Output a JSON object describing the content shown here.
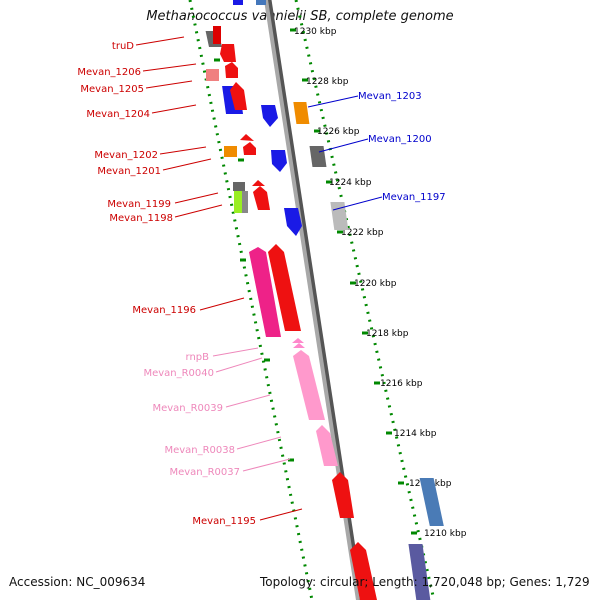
{
  "title": "Methanococcus vannielii SB, complete genome",
  "accession_text": "Accession: NC_009634",
  "summary_text": "Topology: circular; Length: 1,720,048 bp; Genes: 1,729",
  "ticks": [
    "1230 kbp",
    "1228 kbp",
    "1226 kbp",
    "1224 kbp",
    "1222 kbp",
    "1220 kbp",
    "1218 kbp",
    "1216 kbp",
    "1214 kbp",
    "1212 kbp",
    "1210 kbp"
  ],
  "genes": [
    {
      "label": "truD",
      "color": "#cc0000",
      "side": "left"
    },
    {
      "label": "Mevan_1206",
      "color": "#cc0000",
      "side": "left"
    },
    {
      "label": "Mevan_1205",
      "color": "#cc0000",
      "side": "left"
    },
    {
      "label": "Mevan_1204",
      "color": "#cc0000",
      "side": "left"
    },
    {
      "label": "Mevan_1203",
      "color": "#0000cc",
      "side": "right"
    },
    {
      "label": "Mevan_1200",
      "color": "#0000cc",
      "side": "right"
    },
    {
      "label": "Mevan_1202",
      "color": "#cc0000",
      "side": "left"
    },
    {
      "label": "Mevan_1201",
      "color": "#cc0000",
      "side": "left"
    },
    {
      "label": "Mevan_1197",
      "color": "#0000cc",
      "side": "right"
    },
    {
      "label": "Mevan_1199",
      "color": "#cc0000",
      "side": "left"
    },
    {
      "label": "Mevan_1198",
      "color": "#cc0000",
      "side": "left"
    },
    {
      "label": "Mevan_1196",
      "color": "#cc0000",
      "side": "left"
    },
    {
      "label": "rnpB",
      "color": "#ee88bb",
      "side": "left"
    },
    {
      "label": "Mevan_R0040",
      "color": "#ee88bb",
      "side": "left"
    },
    {
      "label": "Mevan_R0039",
      "color": "#ee88bb",
      "side": "left"
    },
    {
      "label": "Mevan_R0038",
      "color": "#ee88bb",
      "side": "left"
    },
    {
      "label": "Mevan_R0037",
      "color": "#ee88bb",
      "side": "left"
    },
    {
      "label": "Mevan_1195",
      "color": "#cc0000",
      "side": "left"
    }
  ],
  "colors": {
    "backbone": "#888888",
    "dotted_track": "#008800",
    "tick_text": "#000000"
  }
}
